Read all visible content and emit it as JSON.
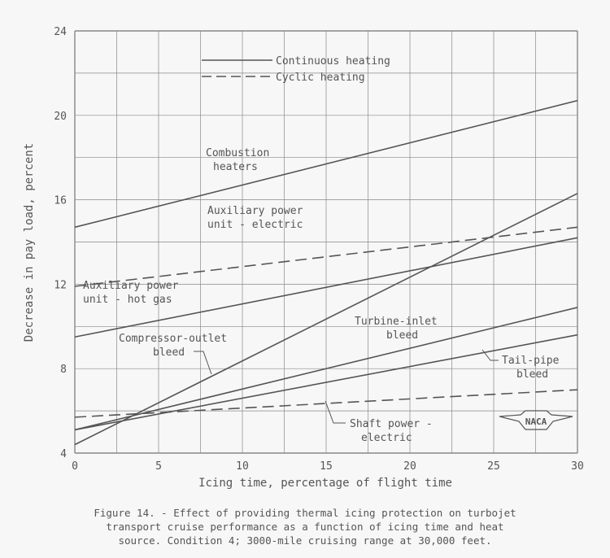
{
  "chart_data": {
    "type": "line",
    "xlabel": "Icing time, percentage of flight time",
    "ylabel": "Decrease in pay load, percent",
    "xlim": [
      0,
      30
    ],
    "ylim": [
      4,
      24
    ],
    "xticks": [
      0,
      5,
      10,
      15,
      20,
      25,
      30
    ],
    "yticks": [
      4,
      8,
      12,
      16,
      20,
      24
    ],
    "grid": true,
    "legend": {
      "placement": "top-center",
      "entries": [
        {
          "label": "Continuous heating",
          "style": "solid"
        },
        {
          "label": "Cyclic heating",
          "style": "dashed"
        }
      ]
    },
    "series": [
      {
        "name": "Combustion heaters",
        "style": "solid",
        "x": [
          0,
          30
        ],
        "y": [
          14.7,
          20.7
        ]
      },
      {
        "name": "Auxiliary power unit - electric",
        "style": "dashed",
        "x": [
          0,
          30
        ],
        "y": [
          11.9,
          14.7
        ]
      },
      {
        "name": "Auxiliary power unit - hot gas",
        "style": "solid",
        "x": [
          0,
          30
        ],
        "y": [
          9.5,
          14.2
        ]
      },
      {
        "name": "Compressor-outlet bleed",
        "style": "solid",
        "x": [
          0,
          30
        ],
        "y": [
          4.4,
          16.3
        ]
      },
      {
        "name": "Turbine-inlet bleed",
        "style": "solid",
        "x": [
          0,
          30
        ],
        "y": [
          5.1,
          10.9
        ]
      },
      {
        "name": "Tail-pipe bleed",
        "style": "solid",
        "x": [
          0,
          30
        ],
        "y": [
          5.1,
          9.6
        ]
      },
      {
        "name": "Shaft power - electric",
        "style": "dashed",
        "x": [
          0,
          30
        ],
        "y": [
          5.7,
          7.0
        ]
      }
    ],
    "annotations": {
      "combustion": [
        "Combustion",
        "heaters"
      ],
      "apu_electric": [
        "Auxiliary power",
        "unit - electric"
      ],
      "apu_hotgas": [
        "Auxiliary power",
        "unit - hot gas"
      ],
      "compressor": [
        "Compressor-outlet",
        "bleed"
      ],
      "turbine": [
        "Turbine-inlet",
        "bleed"
      ],
      "tailpipe": [
        "Tail-pipe",
        "bleed"
      ],
      "shaft": [
        "Shaft power -",
        "electric"
      ]
    },
    "logo": "NACA"
  },
  "caption": [
    "Figure 14. - Effect of providing thermal icing protection on turbojet",
    "transport cruise performance as a function of icing time and heat",
    "source.  Condition 4; 3000-mile cruising range at 30,000 feet."
  ]
}
